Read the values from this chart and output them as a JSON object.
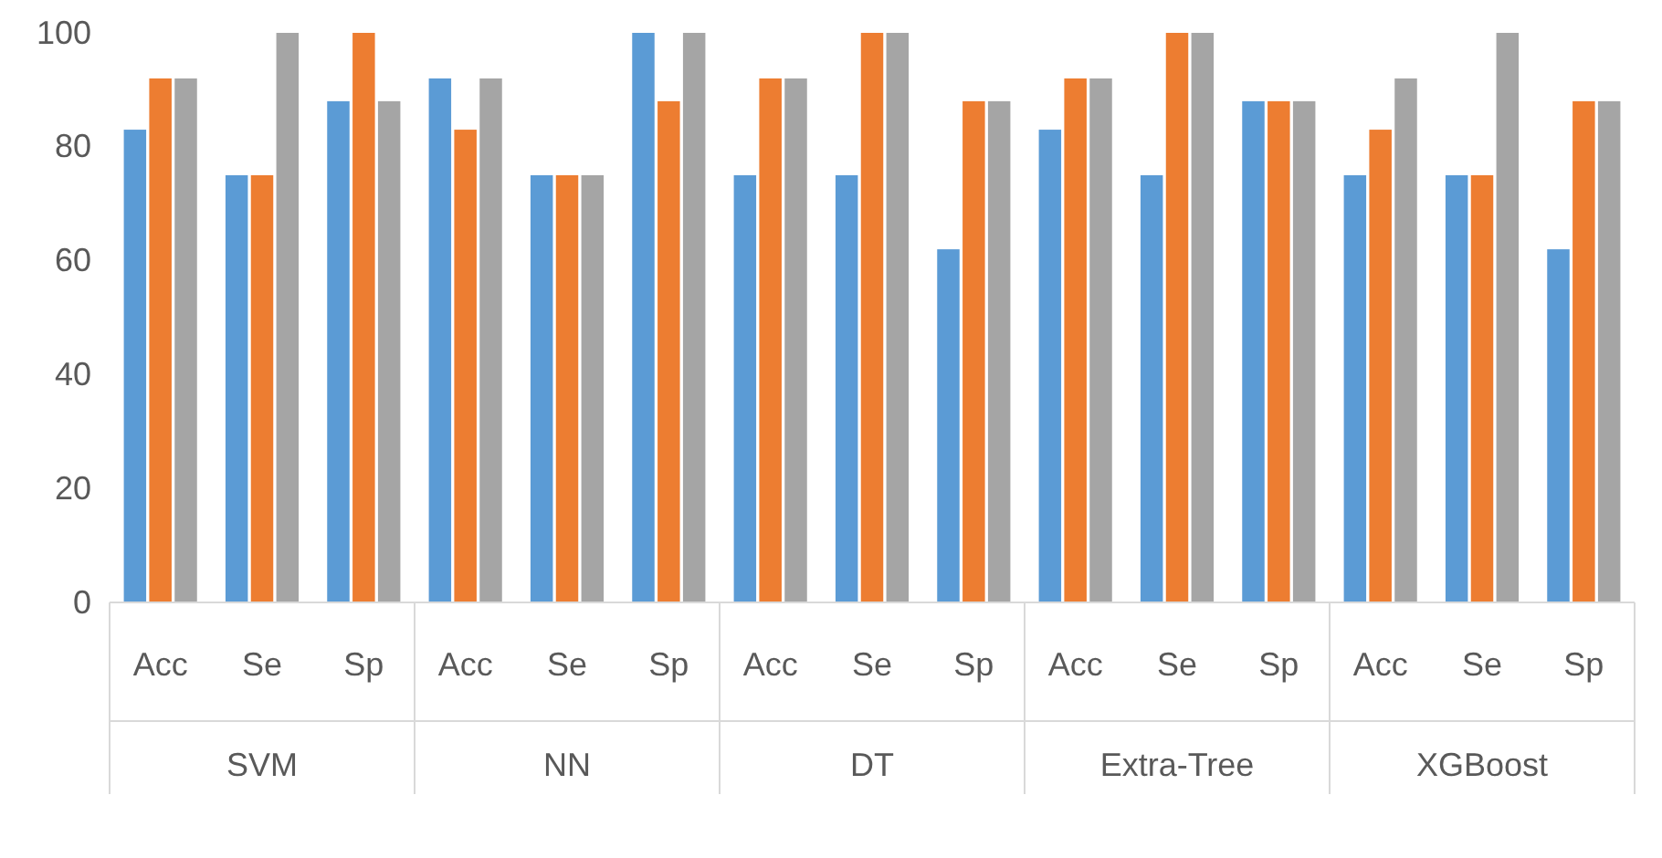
{
  "chart_data": {
    "type": "bar",
    "categories": [
      "Acc",
      "Se",
      "Sp",
      "Acc",
      "Se",
      "Sp",
      "Acc",
      "Se",
      "Sp",
      "Acc",
      "Se",
      "Sp",
      "Acc",
      "Se",
      "Sp"
    ],
    "annotations": [
      "SVM",
      "NN",
      "DT",
      "Extra-Tree",
      "XGBoost"
    ],
    "series": [
      {
        "color": "#5b9bd5",
        "values": [
          83,
          75,
          88,
          92,
          75,
          100,
          75,
          75,
          62,
          83,
          75,
          88,
          75,
          75,
          62
        ]
      },
      {
        "color": "#ed7d31",
        "values": [
          92,
          75,
          100,
          83,
          75,
          88,
          92,
          100,
          88,
          92,
          100,
          88,
          83,
          75,
          88
        ]
      },
      {
        "color": "#a5a5a5",
        "values": [
          92,
          100,
          88,
          92,
          75,
          100,
          92,
          100,
          88,
          92,
          100,
          88,
          92,
          100,
          88
        ]
      }
    ],
    "ylim": [
      0,
      100
    ],
    "yticks": [
      0,
      20,
      40,
      60,
      80,
      100
    ],
    "grid": false
  }
}
